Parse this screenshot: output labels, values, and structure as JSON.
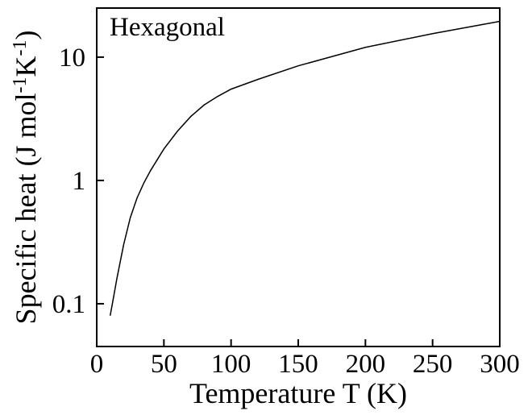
{
  "chart_data": {
    "type": "line",
    "title": "",
    "annotation": "Hexagonal",
    "xlabel": "Temperature T (K)",
    "ylabel": "Specific heat (J mol-1K-1)",
    "ylabel_parts": {
      "a": "Specific heat (J mol",
      "b": "-1",
      "c": "K",
      "d": "-1",
      "e": ")"
    },
    "xlim": [
      0,
      300
    ],
    "ylim": [
      0.045,
      25
    ],
    "yscale": "log",
    "grid": false,
    "x_ticks": [
      0,
      50,
      100,
      150,
      200,
      250,
      300
    ],
    "x_tick_labels": [
      "0",
      "50",
      "100",
      "150",
      "200",
      "250",
      "300"
    ],
    "y_ticks": [
      0.1,
      1,
      10
    ],
    "y_tick_labels": [
      "0.1",
      "1",
      "10"
    ],
    "series": [
      {
        "x": [
          10,
          12,
          15,
          20,
          25,
          30,
          35,
          40,
          50,
          60,
          70,
          80,
          90,
          100,
          120,
          150,
          200,
          250,
          300
        ],
        "y": [
          0.08,
          0.105,
          0.16,
          0.3,
          0.5,
          0.72,
          0.95,
          1.2,
          1.8,
          2.5,
          3.3,
          4.1,
          4.8,
          5.5,
          6.6,
          8.5,
          12.0,
          15.5,
          19.5
        ]
      }
    ]
  }
}
